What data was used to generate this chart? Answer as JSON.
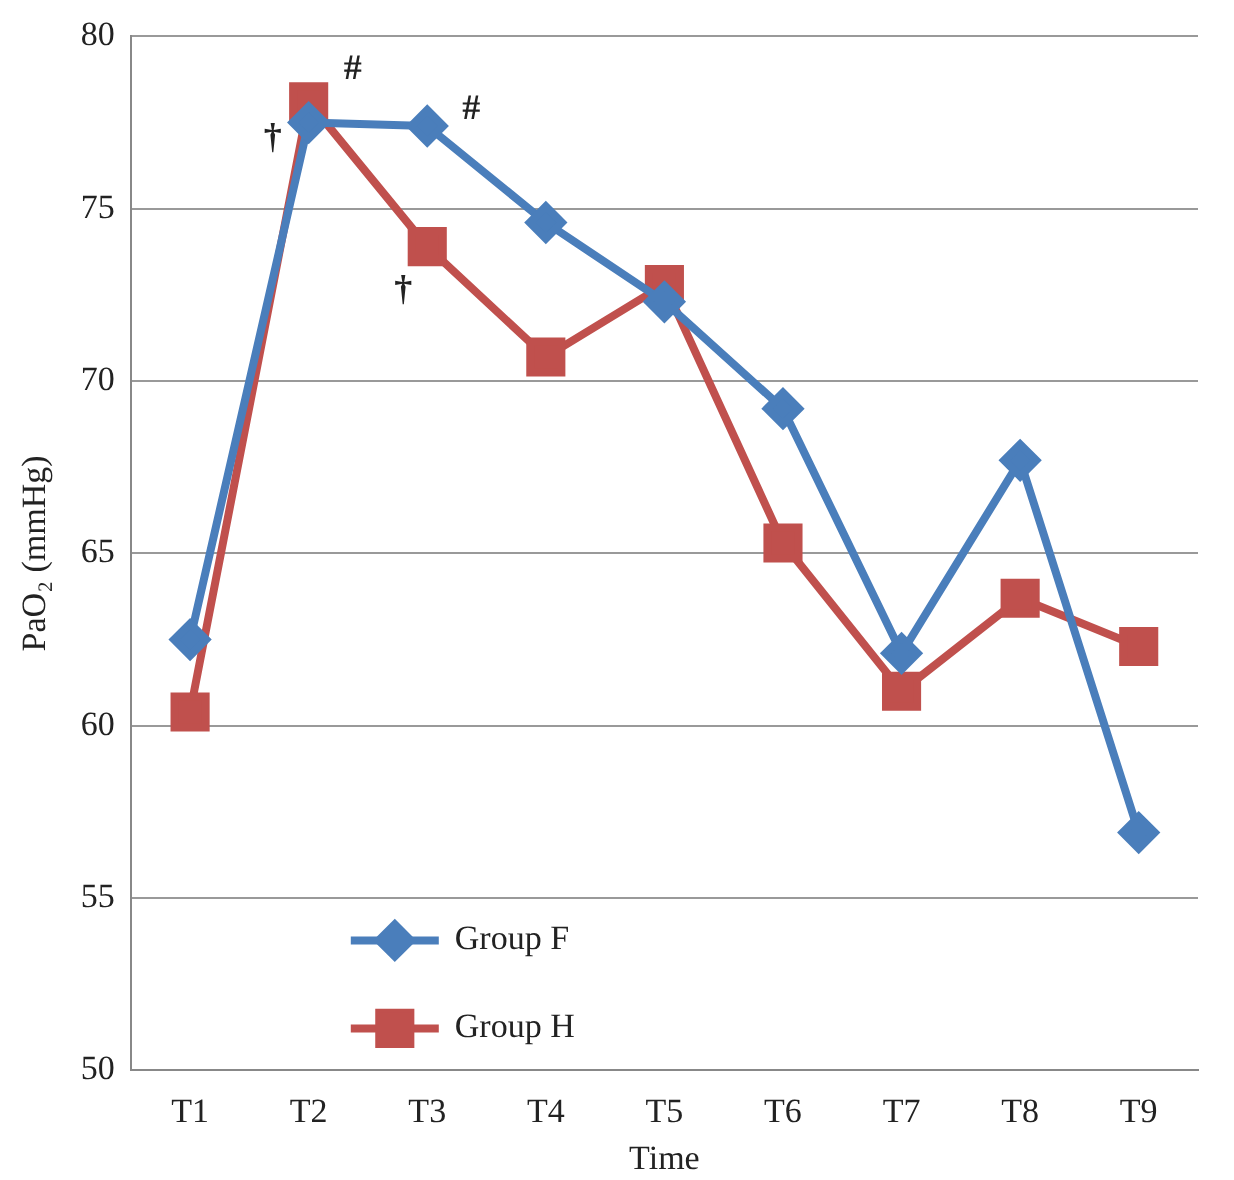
{
  "chart_data": {
    "type": "line",
    "xlabel": "Time",
    "ylabel": "PaO₂ (mmHg)",
    "categories": [
      "T1",
      "T2",
      "T3",
      "T4",
      "T5",
      "T6",
      "T7",
      "T8",
      "T9"
    ],
    "series": [
      {
        "name": "Group F",
        "color": "#4a7ebb",
        "marker": "diamond",
        "values": [
          62.5,
          77.5,
          77.4,
          74.6,
          72.3,
          69.2,
          62.1,
          67.7,
          56.9
        ]
      },
      {
        "name": "Group H",
        "color": "#c0504d",
        "marker": "square",
        "values": [
          60.4,
          78.1,
          73.9,
          70.7,
          72.8,
          65.3,
          61.0,
          63.7,
          62.3
        ]
      }
    ],
    "ylim": [
      50,
      80
    ],
    "yticks": [
      50,
      55,
      60,
      65,
      70,
      75,
      80
    ],
    "grid": "y",
    "legend": "bottom left",
    "annotations": [
      {
        "text": "#",
        "x": "T2",
        "y": 78.1
      },
      {
        "text": "#",
        "x": "T3",
        "y": 77.4
      },
      {
        "text": "†",
        "x": "T2",
        "y": 77.5
      },
      {
        "text": "†",
        "x": "T3",
        "y": 73.9
      }
    ]
  }
}
